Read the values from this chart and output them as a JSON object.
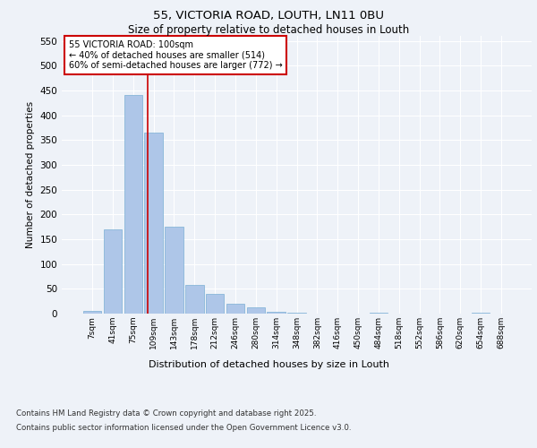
{
  "title1": "55, VICTORIA ROAD, LOUTH, LN11 0BU",
  "title2": "Size of property relative to detached houses in Louth",
  "xlabel": "Distribution of detached houses by size in Louth",
  "ylabel": "Number of detached properties",
  "categories": [
    "7sqm",
    "41sqm",
    "75sqm",
    "109sqm",
    "143sqm",
    "178sqm",
    "212sqm",
    "246sqm",
    "280sqm",
    "314sqm",
    "348sqm",
    "382sqm",
    "416sqm",
    "450sqm",
    "484sqm",
    "518sqm",
    "552sqm",
    "586sqm",
    "620sqm",
    "654sqm",
    "688sqm"
  ],
  "values": [
    6,
    170,
    440,
    365,
    175,
    57,
    39,
    20,
    12,
    4,
    2,
    0,
    0,
    0,
    1,
    0,
    0,
    0,
    0,
    1,
    0
  ],
  "bar_color": "#aec6e8",
  "bar_edge_color": "#7bafd4",
  "marker_line_color": "#cc0000",
  "marker_label": "55 VICTORIA ROAD: 100sqm",
  "annotation_line1": "← 40% of detached houses are smaller (514)",
  "annotation_line2": "60% of semi-detached houses are larger (772) →",
  "ylim": [
    0,
    560
  ],
  "yticks": [
    0,
    50,
    100,
    150,
    200,
    250,
    300,
    350,
    400,
    450,
    500,
    550
  ],
  "background_color": "#eef2f8",
  "grid_color": "#ffffff",
  "footer_line1": "Contains HM Land Registry data © Crown copyright and database right 2025.",
  "footer_line2": "Contains public sector information licensed under the Open Government Licence v3.0."
}
